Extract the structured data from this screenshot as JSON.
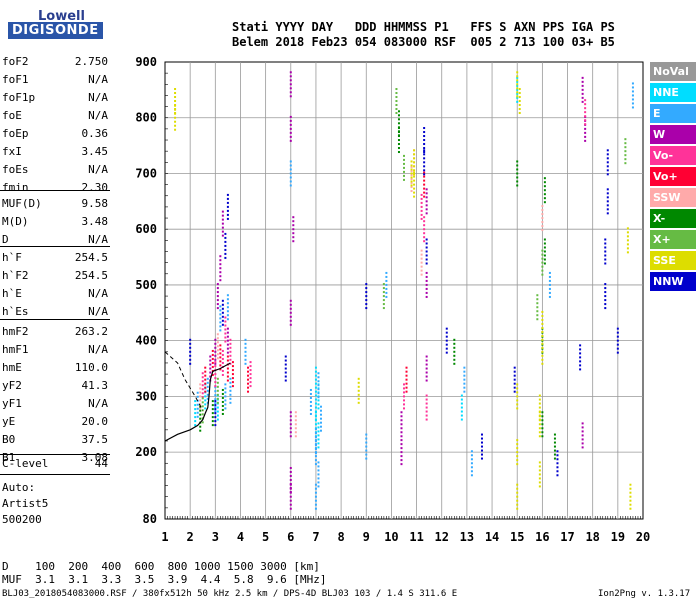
{
  "logo": {
    "line1": "Lowell",
    "line2": "DIGISONDE"
  },
  "header": {
    "labels": "Stati YYYY DAY   DDD HHMMSS P1   FFS S AXN PPS IGA PS",
    "values": "Belem 2018 Feb23 054 083000 RSF  005 2 713 100 03+ B5"
  },
  "params": [
    {
      "name": "foF2",
      "value": "2.750"
    },
    {
      "name": "foF1",
      "value": "N/A"
    },
    {
      "name": "foF1p",
      "value": "N/A"
    },
    {
      "name": "foE",
      "value": "N/A"
    },
    {
      "name": "foEp",
      "value": "0.36"
    },
    {
      "name": "fxI",
      "value": "3.45"
    },
    {
      "name": "foEs",
      "value": "N/A"
    },
    {
      "name": "fmin",
      "value": "2.30"
    },
    {
      "name": "MUF(D)",
      "value": "9.58"
    },
    {
      "name": "M(D)",
      "value": "3.48"
    },
    {
      "name": "D",
      "value": "N/A"
    },
    {
      "name": "h`F",
      "value": "254.5"
    },
    {
      "name": "h`F2",
      "value": "254.5"
    },
    {
      "name": "h`E",
      "value": "N/A"
    },
    {
      "name": "h`Es",
      "value": "N/A"
    },
    {
      "name": "hmF2",
      "value": "263.2"
    },
    {
      "name": "hmF1",
      "value": "N/A"
    },
    {
      "name": "hmE",
      "value": "110.0"
    },
    {
      "name": "yF2",
      "value": "41.3"
    },
    {
      "name": "yF1",
      "value": "N/A"
    },
    {
      "name": "yE",
      "value": "20.0"
    },
    {
      "name": "B0",
      "value": "37.5"
    },
    {
      "name": "B1",
      "value": "3.08"
    },
    {
      "name": "C-level",
      "value": "44"
    }
  ],
  "auto": {
    "l1": "Auto:",
    "l2": "Artist5",
    "l3": "500200"
  },
  "legend": [
    {
      "label": "NoVal",
      "bg": "#999999",
      "fg": "#ffffff"
    },
    {
      "label": "NNE",
      "bg": "#00ddff",
      "fg": "#ffffff"
    },
    {
      "label": "E",
      "bg": "#33aaff",
      "fg": "#ffffff"
    },
    {
      "label": "W",
      "bg": "#aa00aa",
      "fg": "#ffffff"
    },
    {
      "label": "Vo-",
      "bg": "#ff3399",
      "fg": "#ffffff"
    },
    {
      "label": "Vo+",
      "bg": "#ff0033",
      "fg": "#ffffff"
    },
    {
      "label": "SSW",
      "bg": "#ffaaaa",
      "fg": "#ffffff"
    },
    {
      "label": "X-",
      "bg": "#008800",
      "fg": "#ffffff"
    },
    {
      "label": "X+",
      "bg": "#66bb44",
      "fg": "#ffffff"
    },
    {
      "label": "SSE",
      "bg": "#dddd00",
      "fg": "#ffffff"
    },
    {
      "label": "NNW",
      "bg": "#0000cc",
      "fg": "#ffffff"
    }
  ],
  "footer": {
    "d_row": "D    100  200  400  600  800 1000 1500 3000 [km]",
    "muf_row": "MUF  3.1  3.1  3.3  3.5  3.9  4.4  5.8  9.6 [MHz]",
    "info": "BLJ03_2018054083000.RSF / 380fx512h 50 kHz 2.5 km / DPS-4D BLJ03 103 / 1.4 S 311.6 E",
    "version": "Ion2Png v. 1.3.17"
  },
  "chart_data": {
    "type": "scatter",
    "title": "",
    "xlabel": "",
    "ylabel": "",
    "xlim": [
      1,
      20
    ],
    "ylim": [
      80,
      900
    ],
    "xticks": [
      1,
      2,
      3,
      4,
      5,
      6,
      7,
      8,
      9,
      10,
      11,
      12,
      13,
      14,
      15,
      16,
      17,
      18,
      19,
      20
    ],
    "yticks": [
      200,
      300,
      400,
      500,
      600,
      700,
      800,
      900
    ],
    "yticks_bottom": [
      80
    ],
    "grid": true,
    "trace": {
      "name": "F2 trace",
      "color": "#000000",
      "points": [
        [
          1,
          220
        ],
        [
          1.5,
          232
        ],
        [
          2,
          240
        ],
        [
          2.3,
          248
        ],
        [
          2.5,
          258
        ],
        [
          2.6,
          270
        ],
        [
          2.7,
          280
        ],
        [
          2.75,
          300
        ],
        [
          2.8,
          330
        ],
        [
          2.9,
          345
        ],
        [
          3.2,
          350
        ],
        [
          3.6,
          360
        ]
      ]
    },
    "trace_dashed": {
      "name": "dashed",
      "color": "#000000",
      "points": [
        [
          1,
          380
        ],
        [
          1.5,
          360
        ],
        [
          1.8,
          330
        ],
        [
          2.2,
          300
        ],
        [
          2.5,
          275
        ]
      ]
    },
    "series": [
      {
        "name": "NNE",
        "color": "#00ddff",
        "points": [
          [
            2.2,
            270
          ],
          [
            2.6,
            300
          ],
          [
            3.1,
            280
          ],
          [
            7.0,
            280
          ],
          [
            7.0,
            250
          ],
          [
            7.1,
            230
          ],
          [
            7.1,
            300
          ],
          [
            7.0,
            330
          ],
          [
            15.0,
            850
          ],
          [
            12.8,
            280
          ]
        ]
      },
      {
        "name": "E",
        "color": "#33aaff",
        "points": [
          [
            2.3,
            285
          ],
          [
            2.7,
            310
          ],
          [
            3.0,
            295
          ],
          [
            3.4,
            300
          ],
          [
            3.6,
            310
          ],
          [
            7.0,
            220
          ],
          [
            7.0,
            200
          ],
          [
            7.1,
            160
          ],
          [
            7.0,
            120
          ],
          [
            6.8,
            290
          ],
          [
            7.2,
            260
          ],
          [
            7.1,
            320
          ],
          [
            6.0,
            700
          ],
          [
            12.9,
            330
          ],
          [
            13.2,
            180
          ],
          [
            9.8,
            500
          ],
          [
            16.3,
            500
          ],
          [
            19.6,
            840
          ],
          [
            3.2,
            440
          ],
          [
            3.5,
            460
          ],
          [
            4.2,
            380
          ],
          [
            9.0,
            210
          ]
        ]
      },
      {
        "name": "W",
        "color": "#aa00aa",
        "points": [
          [
            2.8,
            350
          ],
          [
            3.0,
            380
          ],
          [
            3.5,
            400
          ],
          [
            6.0,
            860
          ],
          [
            6.0,
            780
          ],
          [
            6.1,
            600
          ],
          [
            6.0,
            450
          ],
          [
            6.0,
            250
          ],
          [
            10.4,
            200
          ],
          [
            10.4,
            250
          ],
          [
            11.4,
            350
          ],
          [
            11.4,
            650
          ],
          [
            11.4,
            500
          ],
          [
            17.6,
            850
          ],
          [
            17.7,
            780
          ],
          [
            17.6,
            230
          ],
          [
            3.1,
            480
          ],
          [
            3.2,
            530
          ],
          [
            3.3,
            610
          ],
          [
            6.0,
            150
          ],
          [
            6.0,
            120
          ]
        ]
      },
      {
        "name": "Vo-",
        "color": "#ff3399",
        "points": [
          [
            2.5,
            320
          ],
          [
            3.0,
            340
          ],
          [
            3.3,
            360
          ],
          [
            3.6,
            380
          ],
          [
            4.4,
            340
          ],
          [
            10.5,
            300
          ],
          [
            11.2,
            640
          ],
          [
            11.3,
            600
          ],
          [
            17.7,
            810
          ],
          [
            11.4,
            280
          ],
          [
            3.4,
            420
          ]
        ]
      },
      {
        "name": "Vo+",
        "color": "#ff0033",
        "points": [
          [
            2.6,
            330
          ],
          [
            2.9,
            360
          ],
          [
            3.2,
            370
          ],
          [
            3.5,
            350
          ],
          [
            3.7,
            340
          ],
          [
            4.3,
            330
          ],
          [
            10.6,
            330
          ],
          [
            11.3,
            680
          ]
        ]
      },
      {
        "name": "SSW",
        "color": "#ffaaaa",
        "points": [
          [
            10.8,
            690
          ],
          [
            10.9,
            720
          ],
          [
            11.2,
            540
          ],
          [
            16.0,
            620
          ],
          [
            3.1,
            390
          ],
          [
            2.4,
            300
          ],
          [
            6.2,
            250
          ]
        ]
      },
      {
        "name": "X-",
        "color": "#008800",
        "points": [
          [
            2.4,
            260
          ],
          [
            2.9,
            270
          ],
          [
            3.3,
            290
          ],
          [
            10.3,
            790
          ],
          [
            10.3,
            760
          ],
          [
            16.1,
            670
          ],
          [
            16.1,
            560
          ],
          [
            16.0,
            400
          ],
          [
            16.0,
            250
          ],
          [
            15.0,
            700
          ],
          [
            16.5,
            210
          ],
          [
            12.5,
            380
          ]
        ]
      },
      {
        "name": "X+",
        "color": "#66bb44",
        "points": [
          [
            2.5,
            275
          ],
          [
            3.1,
            310
          ],
          [
            10.2,
            830
          ],
          [
            10.5,
            710
          ],
          [
            15.8,
            460
          ],
          [
            19.3,
            740
          ],
          [
            9.7,
            480
          ],
          [
            16.0,
            540
          ]
        ]
      },
      {
        "name": "SSE",
        "color": "#dddd00",
        "points": [
          [
            1.4,
            830
          ],
          [
            1.4,
            800
          ],
          [
            10.8,
            700
          ],
          [
            10.9,
            680
          ],
          [
            10.9,
            720
          ],
          [
            15.0,
            860
          ],
          [
            15.1,
            830
          ],
          [
            15.0,
            200
          ],
          [
            15.0,
            120
          ],
          [
            15.9,
            280
          ],
          [
            15.9,
            250
          ],
          [
            16.0,
            380
          ],
          [
            16.0,
            430
          ],
          [
            19.4,
            580
          ],
          [
            19.5,
            120
          ],
          [
            8.7,
            310
          ],
          [
            15.9,
            160
          ],
          [
            15.0,
            300
          ]
        ]
      },
      {
        "name": "NNW",
        "color": "#0000cc",
        "points": [
          [
            2.0,
            380
          ],
          [
            3.0,
            270
          ],
          [
            3.5,
            640
          ],
          [
            3.4,
            570
          ],
          [
            3.3,
            450
          ],
          [
            11.3,
            760
          ],
          [
            11.3,
            720
          ],
          [
            11.4,
            560
          ],
          [
            18.6,
            720
          ],
          [
            18.6,
            650
          ],
          [
            18.5,
            560
          ],
          [
            18.5,
            480
          ],
          [
            12.2,
            400
          ],
          [
            14.9,
            330
          ],
          [
            16.6,
            180
          ],
          [
            17.5,
            370
          ],
          [
            19.0,
            400
          ],
          [
            9.0,
            480
          ],
          [
            5.8,
            350
          ],
          [
            13.6,
            210
          ]
        ]
      }
    ]
  }
}
